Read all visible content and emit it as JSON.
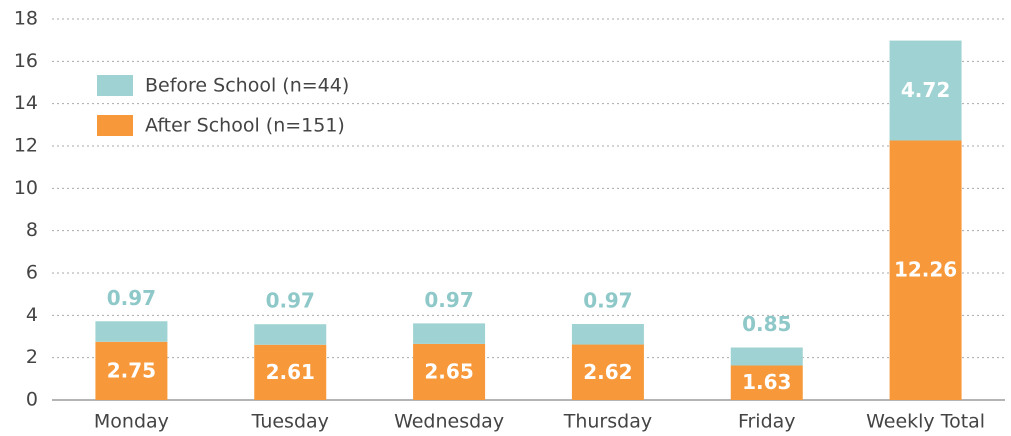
{
  "chart_data": {
    "type": "stacked_bar",
    "categories": [
      "Monday",
      "Tuesday",
      "Wednesday",
      "Thursday",
      "Friday",
      "Weekly Total"
    ],
    "series": [
      {
        "name": "Before School (n=44)",
        "color": "#9fd2d2",
        "values": [
          0.97,
          0.97,
          0.97,
          0.97,
          0.85,
          4.72
        ]
      },
      {
        "name": "After School (n=151)",
        "color": "#f7993b",
        "values": [
          2.75,
          2.61,
          2.65,
          2.62,
          1.63,
          12.26
        ]
      }
    ],
    "ylim": [
      0,
      18
    ],
    "yticks": [
      0,
      2,
      4,
      6,
      8,
      10,
      12,
      14,
      16,
      18
    ],
    "grid": true,
    "legend": "upper left"
  }
}
